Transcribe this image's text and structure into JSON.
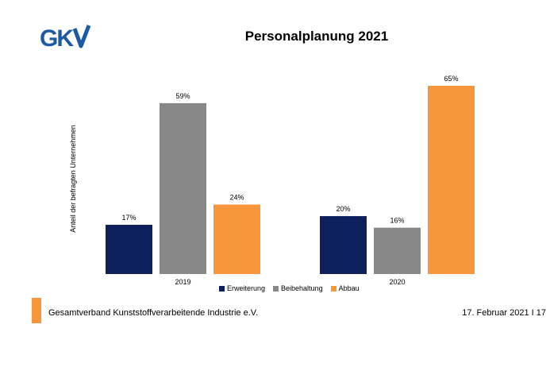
{
  "logo_text": "GKV",
  "chart_data": {
    "type": "bar",
    "title": "Personalplanung 2021",
    "ylabel": "Anteil der befragten Unternehmen",
    "categories": [
      "2019",
      "2020"
    ],
    "series": [
      {
        "name": "Erweiterung",
        "values": [
          17,
          20
        ],
        "labels": [
          "17%",
          "20%"
        ],
        "color": "#0d1f5c"
      },
      {
        "name": "Beibehaltung",
        "values": [
          59,
          16
        ],
        "labels": [
          "59%",
          "16%"
        ],
        "color": "#888888"
      },
      {
        "name": "Abbau",
        "values": [
          24,
          65
        ],
        "labels": [
          "24%",
          "65%"
        ],
        "color": "#f7963b"
      }
    ],
    "ylim": [
      0,
      65
    ],
    "grid": false,
    "legend_position": "bottom"
  },
  "footer": {
    "organization": "Gesamtverband Kunststoffverarbeitende Industrie e.V.",
    "date_page": "17. Februar 2021 I 17",
    "accent_color": "#f7963b"
  }
}
